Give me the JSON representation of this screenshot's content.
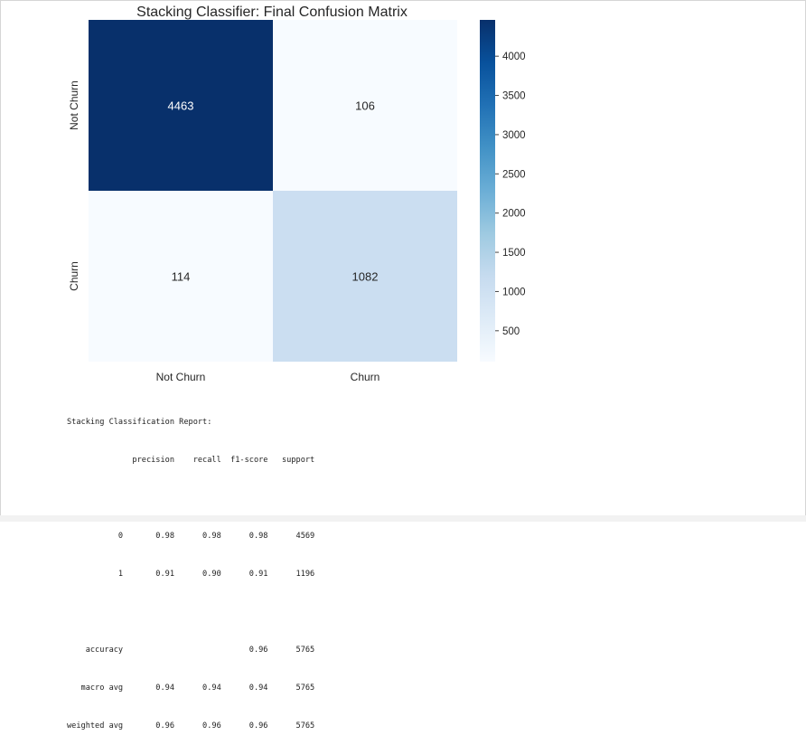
{
  "chart_data": {
    "type": "heatmap",
    "title": "Stacking Classifier: Final Confusion Matrix",
    "x_categories": [
      "Not Churn",
      "Churn"
    ],
    "y_categories": [
      "Not Churn",
      "Churn"
    ],
    "matrix": [
      [
        4463,
        106
      ],
      [
        114,
        1082
      ]
    ],
    "colorbar": {
      "ticks": [
        "500",
        "1000",
        "1500",
        "2000",
        "2500",
        "3000",
        "3500",
        "4000"
      ],
      "tick_values": [
        500,
        1000,
        1500,
        2000,
        2500,
        3000,
        3500,
        4000
      ],
      "range": [
        106,
        4463
      ]
    },
    "colormap": [
      "#f7fbff",
      "#deebf7",
      "#c6dbef",
      "#9ecae1",
      "#6baed6",
      "#4292c6",
      "#2171b5",
      "#08519c",
      "#08306b"
    ],
    "grid": false
  },
  "report": {
    "title": "Stacking Classification Report:",
    "lines": [
      "              precision    recall  f1-score   support",
      "",
      "           0       0.98      0.98      0.98      4569",
      "           1       0.91      0.90      0.91      1196",
      "",
      "    accuracy                           0.96      5765",
      "   macro avg       0.94      0.94      0.94      5765",
      "weighted avg       0.96      0.96      0.96      5765"
    ]
  }
}
